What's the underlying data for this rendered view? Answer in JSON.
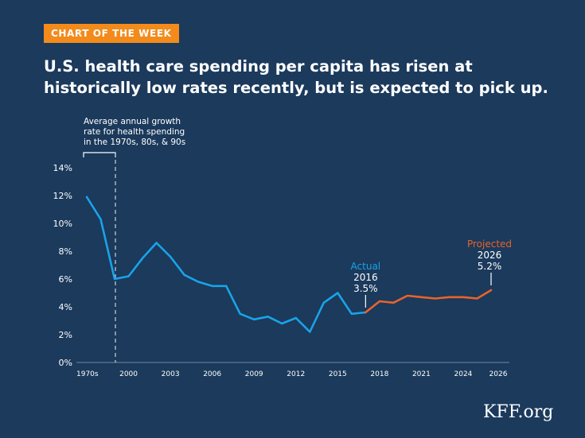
{
  "header": {
    "badge": "CHART OF THE WEEK",
    "title": "U.S. health care spending per capita has risen at historically low rates recently, but is expected to pick up."
  },
  "footer": {
    "logo_text": "KFF.org"
  },
  "colors": {
    "background": "#1b3a5c",
    "badge": "#f28b1c",
    "actual": "#1aa3e8",
    "projected": "#e8632b",
    "text": "#ffffff"
  },
  "chart_data": {
    "type": "line",
    "ylim": [
      0,
      14
    ],
    "yticks": [
      {
        "v": 0,
        "label": "0%"
      },
      {
        "v": 2,
        "label": "2%"
      },
      {
        "v": 4,
        "label": "4%"
      },
      {
        "v": 6,
        "label": "6%"
      },
      {
        "v": 8,
        "label": "8%"
      },
      {
        "v": 10,
        "label": "10%"
      },
      {
        "v": 12,
        "label": "12%"
      },
      {
        "v": 14,
        "label": "14%"
      }
    ],
    "xticks": [
      {
        "x": 1997,
        "label": "1970s"
      },
      {
        "x": 2000,
        "label": "2000"
      },
      {
        "x": 2003,
        "label": "2003"
      },
      {
        "x": 2006,
        "label": "2006"
      },
      {
        "x": 2009,
        "label": "2009"
      },
      {
        "x": 2012,
        "label": "2012"
      },
      {
        "x": 2015,
        "label": "2015"
      },
      {
        "x": 2018,
        "label": "2018"
      },
      {
        "x": 2021,
        "label": "2021"
      },
      {
        "x": 2024,
        "label": "2024"
      },
      {
        "x": 2026,
        "label": "2026"
      }
    ],
    "decade_bracket_label": "Average annual growth rate for health spending in the 1970s, 80s, & 90s",
    "series": [
      {
        "name": "Actual",
        "color": "#1aa3e8",
        "points": [
          {
            "x": 1997,
            "y": 11.9
          },
          {
            "x": 1998,
            "y": 10.3
          },
          {
            "x": 1999,
            "y": 6.0
          },
          {
            "x": 2000,
            "y": 6.2
          },
          {
            "x": 2001,
            "y": 7.5
          },
          {
            "x": 2002,
            "y": 8.6
          },
          {
            "x": 2003,
            "y": 7.6
          },
          {
            "x": 2004,
            "y": 6.3
          },
          {
            "x": 2005,
            "y": 5.8
          },
          {
            "x": 2006,
            "y": 5.5
          },
          {
            "x": 2007,
            "y": 5.5
          },
          {
            "x": 2008,
            "y": 3.5
          },
          {
            "x": 2009,
            "y": 3.1
          },
          {
            "x": 2010,
            "y": 3.3
          },
          {
            "x": 2011,
            "y": 2.8
          },
          {
            "x": 2012,
            "y": 3.2
          },
          {
            "x": 2013,
            "y": 2.2
          },
          {
            "x": 2014,
            "y": 4.3
          },
          {
            "x": 2015,
            "y": 5.0
          },
          {
            "x": 2016,
            "y": 3.5
          },
          {
            "x": 2017,
            "y": 3.6
          }
        ]
      },
      {
        "name": "Projected",
        "color": "#e8632b",
        "points": [
          {
            "x": 2017,
            "y": 3.6
          },
          {
            "x": 2018,
            "y": 4.4
          },
          {
            "x": 2019,
            "y": 4.3
          },
          {
            "x": 2020,
            "y": 4.8
          },
          {
            "x": 2021,
            "y": 4.7
          },
          {
            "x": 2022,
            "y": 4.6
          },
          {
            "x": 2023,
            "y": 4.7
          },
          {
            "x": 2024,
            "y": 4.7
          },
          {
            "x": 2025,
            "y": 4.6
          },
          {
            "x": 2026,
            "y": 5.2
          }
        ]
      }
    ],
    "annotations": [
      {
        "at": {
          "x": 2017,
          "y": 3.6
        },
        "title": "Actual",
        "year": "2016",
        "value": "3.5%",
        "color": "#1aa3e8"
      },
      {
        "at": {
          "x": 2026,
          "y": 5.2
        },
        "title": "Projected",
        "year": "2026",
        "value": "5.2%",
        "color": "#e8632b"
      }
    ]
  }
}
